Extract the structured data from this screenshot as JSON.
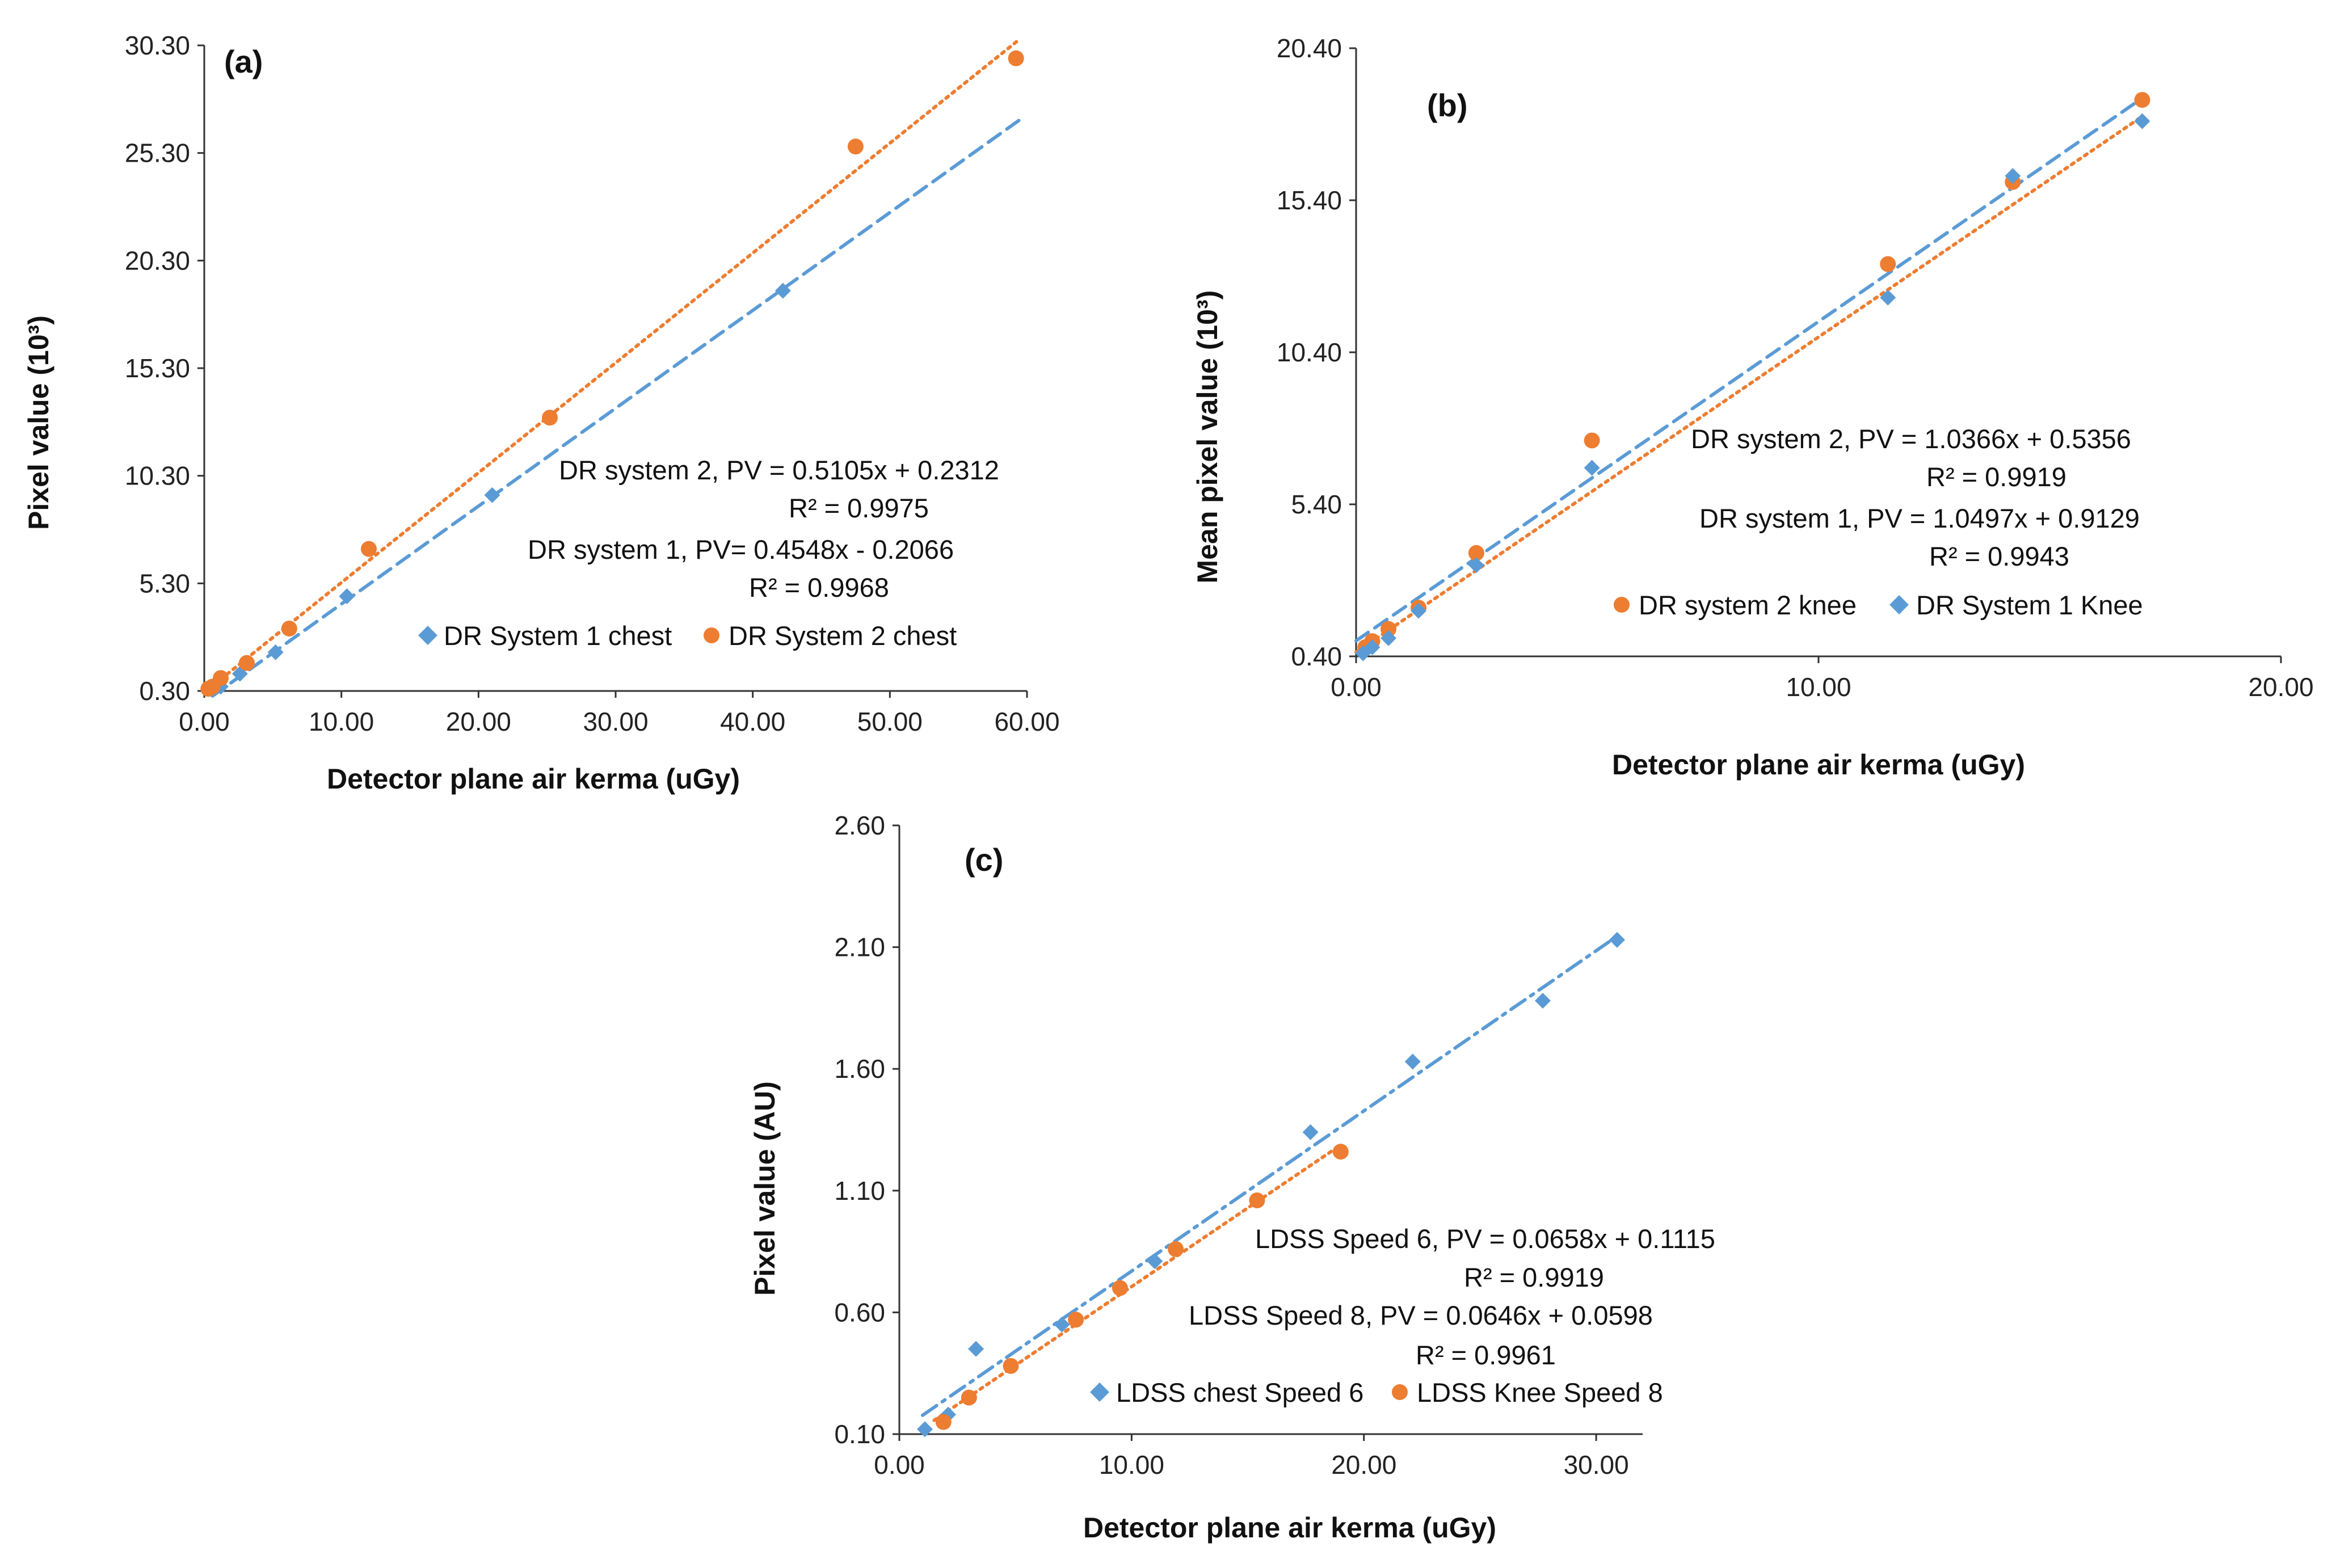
{
  "colors": {
    "blue": "#5b9bd5",
    "orange": "#ed7d31",
    "axis": "#333333"
  },
  "chart_data": [
    {
      "id": "a",
      "type": "scatter",
      "panel_label": "(a)",
      "xlabel": "Detector plane air kerma (uGy)",
      "ylabel": "Pixel value (10³)",
      "xlim": [
        0,
        60
      ],
      "ylim": [
        0.3,
        30.3
      ],
      "xticks": [
        "0.00",
        "10.00",
        "20.00",
        "30.00",
        "40.00",
        "50.00",
        "60.00"
      ],
      "yticks": [
        "0.30",
        "5.30",
        "10.30",
        "15.30",
        "20.30",
        "25.30",
        "30.30"
      ],
      "series": [
        {
          "name": "DR System 1 chest",
          "color_key": "blue",
          "marker": "diamond",
          "x": [
            0.6,
            1.2,
            2.6,
            5.2,
            10.4,
            21,
            42.2
          ],
          "y": [
            0.4,
            0.5,
            1.1,
            2.1,
            4.7,
            9.4,
            18.9
          ],
          "trend": {
            "slope": 0.4548,
            "intercept": -0.2066,
            "dash": "dash",
            "x_range": [
              0.6,
              59.5
            ]
          }
        },
        {
          "name": "DR System 2 chest",
          "color_key": "orange",
          "marker": "circle",
          "x": [
            0.3,
            0.6,
            1.2,
            3.1,
            6.2,
            12,
            25.2,
            47.5,
            59.2
          ],
          "y": [
            0.4,
            0.5,
            0.9,
            1.6,
            3.2,
            6.9,
            13,
            25.6,
            29.7
          ],
          "trend": {
            "slope": 0.5105,
            "intercept": 0.2312,
            "dash": "dot",
            "x_range": [
              0.3,
              59.5
            ]
          }
        }
      ],
      "annotations": [
        "DR system 2, PV = 0.5105x + 0.2312",
        "R² = 0.9975",
        "DR system 1, PV= 0.4548x - 0.2066",
        "R² = 0.9968"
      ]
    },
    {
      "id": "b",
      "type": "scatter",
      "panel_label": "(b)",
      "xlabel": "Detector plane air kerma (uGy)",
      "ylabel": "Mean pixel value (10³)",
      "xlim": [
        0,
        20
      ],
      "ylim": [
        0.4,
        20.4
      ],
      "xticks": [
        "0.00",
        "10.00",
        "20.00"
      ],
      "yticks": [
        "0.40",
        "5.40",
        "10.40",
        "15.40",
        "20.40"
      ],
      "series": [
        {
          "name": "DR system 2 knee",
          "color_key": "orange",
          "marker": "circle",
          "x": [
            0.2,
            0.35,
            0.7,
            1.35,
            2.6,
            5.1,
            11.5,
            14.2,
            17
          ],
          "y": [
            0.7,
            0.9,
            1.3,
            2.0,
            3.8,
            7.5,
            13.3,
            16.0,
            18.7
          ],
          "trend": {
            "slope": 1.0366,
            "intercept": 0.5356,
            "dash": "dot",
            "x_range": [
              0,
              17
            ]
          }
        },
        {
          "name": "DR System 1 Knee",
          "color_key": "blue",
          "marker": "diamond",
          "x": [
            0.15,
            0.35,
            0.7,
            1.35,
            2.6,
            5.1,
            11.5,
            14.2,
            17
          ],
          "y": [
            0.5,
            0.7,
            1.0,
            1.9,
            3.4,
            6.6,
            12.2,
            16.2,
            18.0
          ],
          "trend": {
            "slope": 1.0497,
            "intercept": 0.9129,
            "dash": "dash",
            "x_range": [
              0,
              17
            ]
          }
        }
      ],
      "annotations": [
        "DR system 2, PV = 1.0366x + 0.5356",
        "R² = 0.9919",
        "DR system 1, PV = 1.0497x + 0.9129",
        "R² = 0.9943"
      ]
    },
    {
      "id": "c",
      "type": "scatter",
      "panel_label": "(c)",
      "xlabel": "Detector plane air kerma (uGy)",
      "ylabel": "Pixel value  (AU)",
      "xlim": [
        0,
        32
      ],
      "ylim": [
        0.1,
        2.6
      ],
      "xticks": [
        "0.00",
        "10.00",
        "20.00",
        "30.00"
      ],
      "yticks": [
        "0.10",
        "0.60",
        "1.10",
        "1.60",
        "2.10",
        "2.60"
      ],
      "series": [
        {
          "name": "LDSS chest Speed 6",
          "color_key": "blue",
          "marker": "diamond",
          "x": [
            1.1,
            2.1,
            3.3,
            7.0,
            11.0,
            17.7,
            22.1,
            27.7,
            30.9
          ],
          "y": [
            0.12,
            0.18,
            0.45,
            0.55,
            0.81,
            1.34,
            1.63,
            1.88,
            2.13
          ],
          "trend": {
            "slope": 0.0658,
            "intercept": 0.1115,
            "dash": "dashdot",
            "x_range": [
              1.0,
              31.0
            ]
          }
        },
        {
          "name": "LDSS Knee Speed 8",
          "color_key": "orange",
          "marker": "circle",
          "x": [
            1.9,
            3.0,
            4.8,
            7.6,
            9.5,
            11.9,
            15.4,
            19.0
          ],
          "y": [
            0.15,
            0.25,
            0.38,
            0.57,
            0.7,
            0.86,
            1.06,
            1.26
          ],
          "trend": {
            "slope": 0.0646,
            "intercept": 0.0598,
            "dash": "dot",
            "x_range": [
              1.5,
              19.0
            ]
          }
        }
      ],
      "annotations": [
        "LDSS Speed 6,  PV = 0.0658x + 0.1115",
        "R² = 0.9919",
        "LDSS Speed 8,  PV = 0.0646x + 0.0598",
        "R² = 0.9961"
      ]
    }
  ]
}
